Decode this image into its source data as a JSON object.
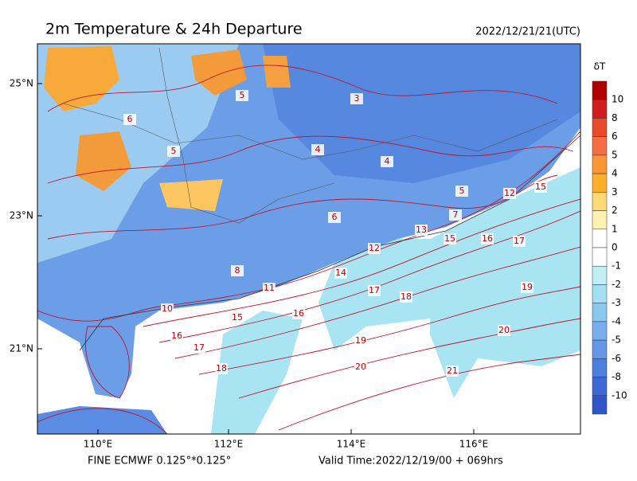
{
  "header": {
    "title": "2m Temperature & 24h Departure",
    "time": "2022/12/21/21(UTC)"
  },
  "axes": {
    "x_labels": [
      "110°E",
      "112°E",
      "114°E",
      "116°E"
    ],
    "y_labels": [
      "25°N",
      "23°N",
      "21°N"
    ]
  },
  "colorbar": {
    "title": "δT",
    "labels": [
      "10",
      "8",
      "6",
      "5",
      "4",
      "3",
      "2",
      "1",
      "0",
      "-1",
      "-2",
      "-3",
      "-4",
      "-5",
      "-6",
      "-8",
      "-10"
    ],
    "colors": [
      "#b00000",
      "#d01c1c",
      "#e84a2a",
      "#f46d43",
      "#f99633",
      "#fdae2a",
      "#fed976",
      "#fff2b0",
      "#ffffff",
      "#ffffff",
      "#bfeef5",
      "#a3def2",
      "#8cc7ef",
      "#78aeeb",
      "#6597e6",
      "#4c7fde",
      "#3e68d6",
      "#2f55c8"
    ]
  },
  "contour_labels": [
    "5",
    "6",
    "5",
    "4",
    "3",
    "4",
    "5",
    "6",
    "7",
    "8",
    "10",
    "11",
    "12",
    "13",
    "14",
    "15",
    "16",
    "17",
    "18",
    "15",
    "16",
    "17",
    "16",
    "17",
    "18",
    "19",
    "19",
    "20",
    "20",
    "21",
    "15",
    "12"
  ],
  "footer": {
    "source": "FINE ECMWF 0.125°*0.125°",
    "valid_time": "Valid Time:2022/12/19/00 + 069hrs"
  }
}
